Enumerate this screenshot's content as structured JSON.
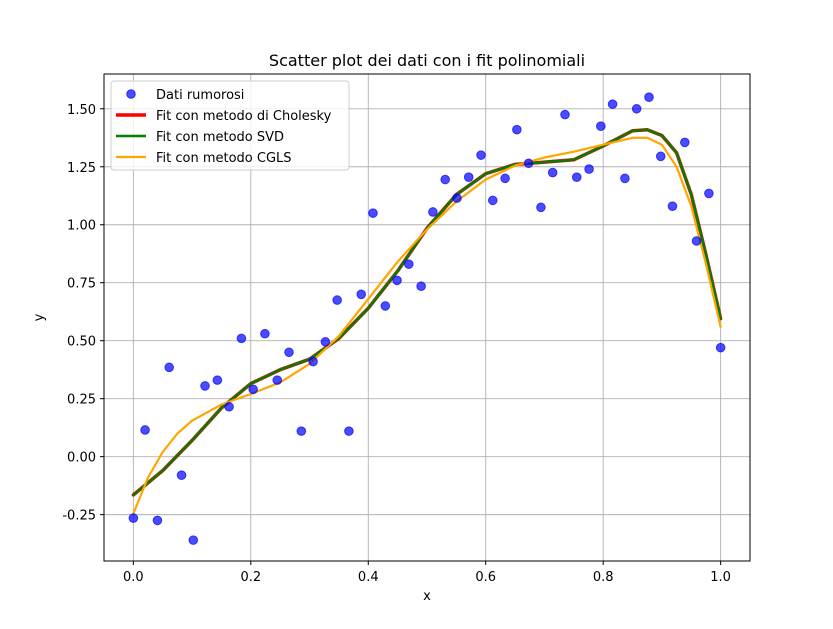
{
  "chart_data": {
    "type": "scatter",
    "title": "Scatter plot dei dati con i fit polinomiali",
    "xlabel": "x",
    "ylabel": "y",
    "xlim": [
      -0.05,
      1.05
    ],
    "ylim": [
      -0.45,
      1.65
    ],
    "xticks": [
      "0.0",
      "0.2",
      "0.4",
      "0.6",
      "0.8",
      "1.0"
    ],
    "yticks": [
      "-0.25",
      "0.00",
      "0.25",
      "0.50",
      "0.75",
      "1.00",
      "1.25",
      "1.50"
    ],
    "grid": true,
    "legend_position": "upper-left",
    "scatter": {
      "name": "Dati rumorosi",
      "color": "#0000ff",
      "x": [
        0.0,
        0.02,
        0.041,
        0.061,
        0.082,
        0.102,
        0.122,
        0.143,
        0.163,
        0.184,
        0.204,
        0.224,
        0.245,
        0.265,
        0.286,
        0.306,
        0.327,
        0.347,
        0.367,
        0.388,
        0.408,
        0.429,
        0.449,
        0.469,
        0.49,
        0.51,
        0.531,
        0.551,
        0.571,
        0.592,
        0.612,
        0.633,
        0.653,
        0.673,
        0.694,
        0.714,
        0.735,
        0.755,
        0.776,
        0.796,
        0.816,
        0.837,
        0.857,
        0.878,
        0.898,
        0.918,
        0.939,
        0.959,
        0.98,
        1.0
      ],
      "y": [
        -0.265,
        0.115,
        -0.275,
        0.385,
        -0.08,
        -0.36,
        0.305,
        0.33,
        0.215,
        0.51,
        0.29,
        0.53,
        0.33,
        0.45,
        0.11,
        0.41,
        0.495,
        0.675,
        0.11,
        0.7,
        1.05,
        0.65,
        0.76,
        0.83,
        0.735,
        1.055,
        1.195,
        1.115,
        1.205,
        1.3,
        1.105,
        1.2,
        1.41,
        1.265,
        1.075,
        1.225,
        1.475,
        1.205,
        1.24,
        1.425,
        1.52,
        1.2,
        1.5,
        1.55,
        1.295,
        1.08,
        1.355,
        0.93,
        1.135,
        0.47
      ]
    },
    "series": [
      {
        "name": "Fit con metodo di Cholesky",
        "color": "#ff0000",
        "x": [
          0.0,
          0.05,
          0.1,
          0.15,
          0.2,
          0.25,
          0.3,
          0.35,
          0.4,
          0.45,
          0.5,
          0.55,
          0.6,
          0.65,
          0.7,
          0.75,
          0.8,
          0.85,
          0.875,
          0.9,
          0.925,
          0.95,
          0.975,
          1.0
        ],
        "y": [
          -0.165,
          -0.06,
          0.07,
          0.21,
          0.315,
          0.375,
          0.42,
          0.51,
          0.64,
          0.8,
          0.985,
          1.13,
          1.22,
          1.26,
          1.27,
          1.28,
          1.34,
          1.405,
          1.41,
          1.385,
          1.31,
          1.13,
          0.87,
          0.595
        ]
      },
      {
        "name": "Fit con metodo SVD",
        "color": "#008000",
        "x": [
          0.0,
          0.05,
          0.1,
          0.15,
          0.2,
          0.25,
          0.3,
          0.35,
          0.4,
          0.45,
          0.5,
          0.55,
          0.6,
          0.65,
          0.7,
          0.75,
          0.8,
          0.85,
          0.875,
          0.9,
          0.925,
          0.95,
          0.975,
          1.0
        ],
        "y": [
          -0.165,
          -0.06,
          0.07,
          0.21,
          0.315,
          0.375,
          0.42,
          0.51,
          0.64,
          0.8,
          0.985,
          1.13,
          1.22,
          1.26,
          1.27,
          1.28,
          1.34,
          1.405,
          1.41,
          1.385,
          1.31,
          1.13,
          0.87,
          0.595
        ]
      },
      {
        "name": "Fit con metodo CGLS",
        "color": "#ffa500",
        "x": [
          0.0,
          0.025,
          0.05,
          0.075,
          0.1,
          0.15,
          0.2,
          0.25,
          0.3,
          0.35,
          0.4,
          0.45,
          0.5,
          0.55,
          0.6,
          0.65,
          0.7,
          0.75,
          0.8,
          0.85,
          0.875,
          0.9,
          0.925,
          0.95,
          0.975,
          1.0
        ],
        "y": [
          -0.245,
          -0.09,
          0.02,
          0.1,
          0.155,
          0.225,
          0.27,
          0.32,
          0.4,
          0.52,
          0.68,
          0.84,
          0.98,
          1.1,
          1.195,
          1.255,
          1.29,
          1.315,
          1.345,
          1.375,
          1.375,
          1.345,
          1.25,
          1.08,
          0.83,
          0.56
        ]
      }
    ]
  }
}
